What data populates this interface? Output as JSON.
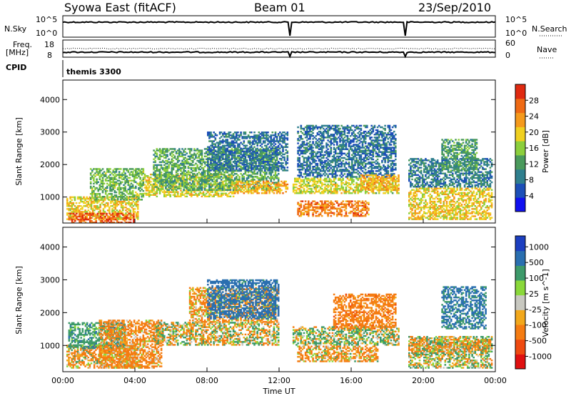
{
  "header": {
    "title": "Syowa East (fitACF)",
    "beam": "Beam 01",
    "date": "23/Sep/2010"
  },
  "status_panels": {
    "nsky_label": "N.Sky",
    "nsky_ticks": [
      "10^5",
      "10^0"
    ],
    "nsearch_label": "N.Search",
    "nsearch_ticks": [
      "10^5",
      "10^0"
    ],
    "freq_label": "Freq.",
    "freq_unit": "[MHz]",
    "freq_ticks": [
      "18",
      "8"
    ],
    "nave_label": "Nave",
    "nave_ticks": [
      "60",
      "0"
    ],
    "cpid_label": "CPID",
    "cpid_value": "themis 3300"
  },
  "chart_data": [
    {
      "type": "heatmap",
      "name": "power",
      "ylabel": "Slant Range [km]",
      "xlabel": "",
      "xlim": [
        0,
        24
      ],
      "ylim": [
        200,
        4600
      ],
      "y_ticks": [
        1000,
        2000,
        3000,
        4000
      ],
      "colorbar_label": "Power [dB]",
      "colorbar_ticks": [
        4,
        8,
        12,
        16,
        20,
        24,
        28
      ],
      "colorbar_range": [
        0,
        32
      ],
      "colors": [
        "#1010f0",
        "#1c4fb8",
        "#2f7f8e",
        "#4a9a5c",
        "#8ccf3c",
        "#f0d020",
        "#f59a1c",
        "#ef6a14",
        "#e02a10"
      ],
      "echo_regions": [
        {
          "t0": 0.2,
          "t1": 4.2,
          "r0": 300,
          "r1": 1000,
          "level": 20
        },
        {
          "t0": 0.3,
          "t1": 4.0,
          "r0": 200,
          "r1": 500,
          "level": 27
        },
        {
          "t0": 1.5,
          "t1": 4.5,
          "r0": 900,
          "r1": 1900,
          "level": 14
        },
        {
          "t0": 4.5,
          "t1": 9.5,
          "r0": 1000,
          "r1": 1700,
          "level": 19
        },
        {
          "t0": 5.0,
          "t1": 12.0,
          "r0": 1200,
          "r1": 2500,
          "level": 13
        },
        {
          "t0": 9.5,
          "t1": 12.5,
          "r0": 1100,
          "r1": 1500,
          "level": 22
        },
        {
          "t0": 8.0,
          "t1": 12.5,
          "r0": 1800,
          "r1": 3000,
          "level": 8
        },
        {
          "t0": 12.5,
          "t1": 18.7,
          "r0": 1100,
          "r1": 1600,
          "level": 18
        },
        {
          "t0": 13.0,
          "t1": 17.0,
          "r0": 400,
          "r1": 900,
          "level": 25
        },
        {
          "t0": 13.0,
          "t1": 18.5,
          "r0": 1600,
          "r1": 3200,
          "level": 8
        },
        {
          "t0": 16.5,
          "t1": 18.7,
          "r0": 1200,
          "r1": 1700,
          "level": 22
        },
        {
          "t0": 19.0,
          "t1": 23.8,
          "r0": 300,
          "r1": 1300,
          "level": 20
        },
        {
          "t0": 19.0,
          "t1": 23.8,
          "r0": 1300,
          "r1": 2200,
          "level": 9
        },
        {
          "t0": 21.0,
          "t1": 23.0,
          "r0": 1800,
          "r1": 2800,
          "level": 12
        }
      ]
    },
    {
      "type": "heatmap",
      "name": "velocity",
      "ylabel": "Slant Range [km]",
      "xlabel": "Time UT",
      "xlim": [
        0,
        24
      ],
      "ylim": [
        200,
        4600
      ],
      "y_ticks": [
        1000,
        2000,
        3000,
        4000
      ],
      "x_ticks": [
        "00:00",
        "04:00",
        "08:00",
        "12:00",
        "16:00",
        "20:00",
        "00:00"
      ],
      "colorbar_label": "Velocity [m s^-1]",
      "colorbar_ticks": [
        1000,
        500,
        100,
        25,
        -25,
        -100,
        -500,
        -1000
      ],
      "colors": [
        "#1c3fc0",
        "#2a6fb0",
        "#3d9a6a",
        "#8ad83a",
        "#c8c8c0",
        "#f2a81c",
        "#f57c12",
        "#ef4a10",
        "#e01010"
      ],
      "echo_regions": [
        {
          "t0": 0.2,
          "t1": 4.2,
          "r0": 300,
          "r1": 1000,
          "level": -100
        },
        {
          "t0": 0.3,
          "t1": 3.5,
          "r0": 900,
          "r1": 1700,
          "level": 300
        },
        {
          "t0": 2.0,
          "t1": 5.5,
          "r0": 300,
          "r1": 1800,
          "level": -200
        },
        {
          "t0": 5.0,
          "t1": 12.0,
          "r0": 1000,
          "r1": 1700,
          "level": 0
        },
        {
          "t0": 7.0,
          "t1": 12.0,
          "r0": 1700,
          "r1": 2800,
          "level": -150
        },
        {
          "t0": 8.0,
          "t1": 12.0,
          "r0": 1800,
          "r1": 3000,
          "level": 700
        },
        {
          "t0": 12.5,
          "t1": 18.7,
          "r0": 1000,
          "r1": 1600,
          "level": 80
        },
        {
          "t0": 13.0,
          "t1": 17.5,
          "r0": 500,
          "r1": 1000,
          "level": -120
        },
        {
          "t0": 15.0,
          "t1": 18.5,
          "r0": 1500,
          "r1": 2600,
          "level": -300
        },
        {
          "t0": 19.0,
          "t1": 23.8,
          "r0": 300,
          "r1": 1300,
          "level": 50
        },
        {
          "t0": 19.0,
          "t1": 23.8,
          "r0": 800,
          "r1": 1200,
          "level": -80
        },
        {
          "t0": 21.0,
          "t1": 23.5,
          "r0": 1500,
          "r1": 2800,
          "level": 600
        }
      ]
    }
  ]
}
